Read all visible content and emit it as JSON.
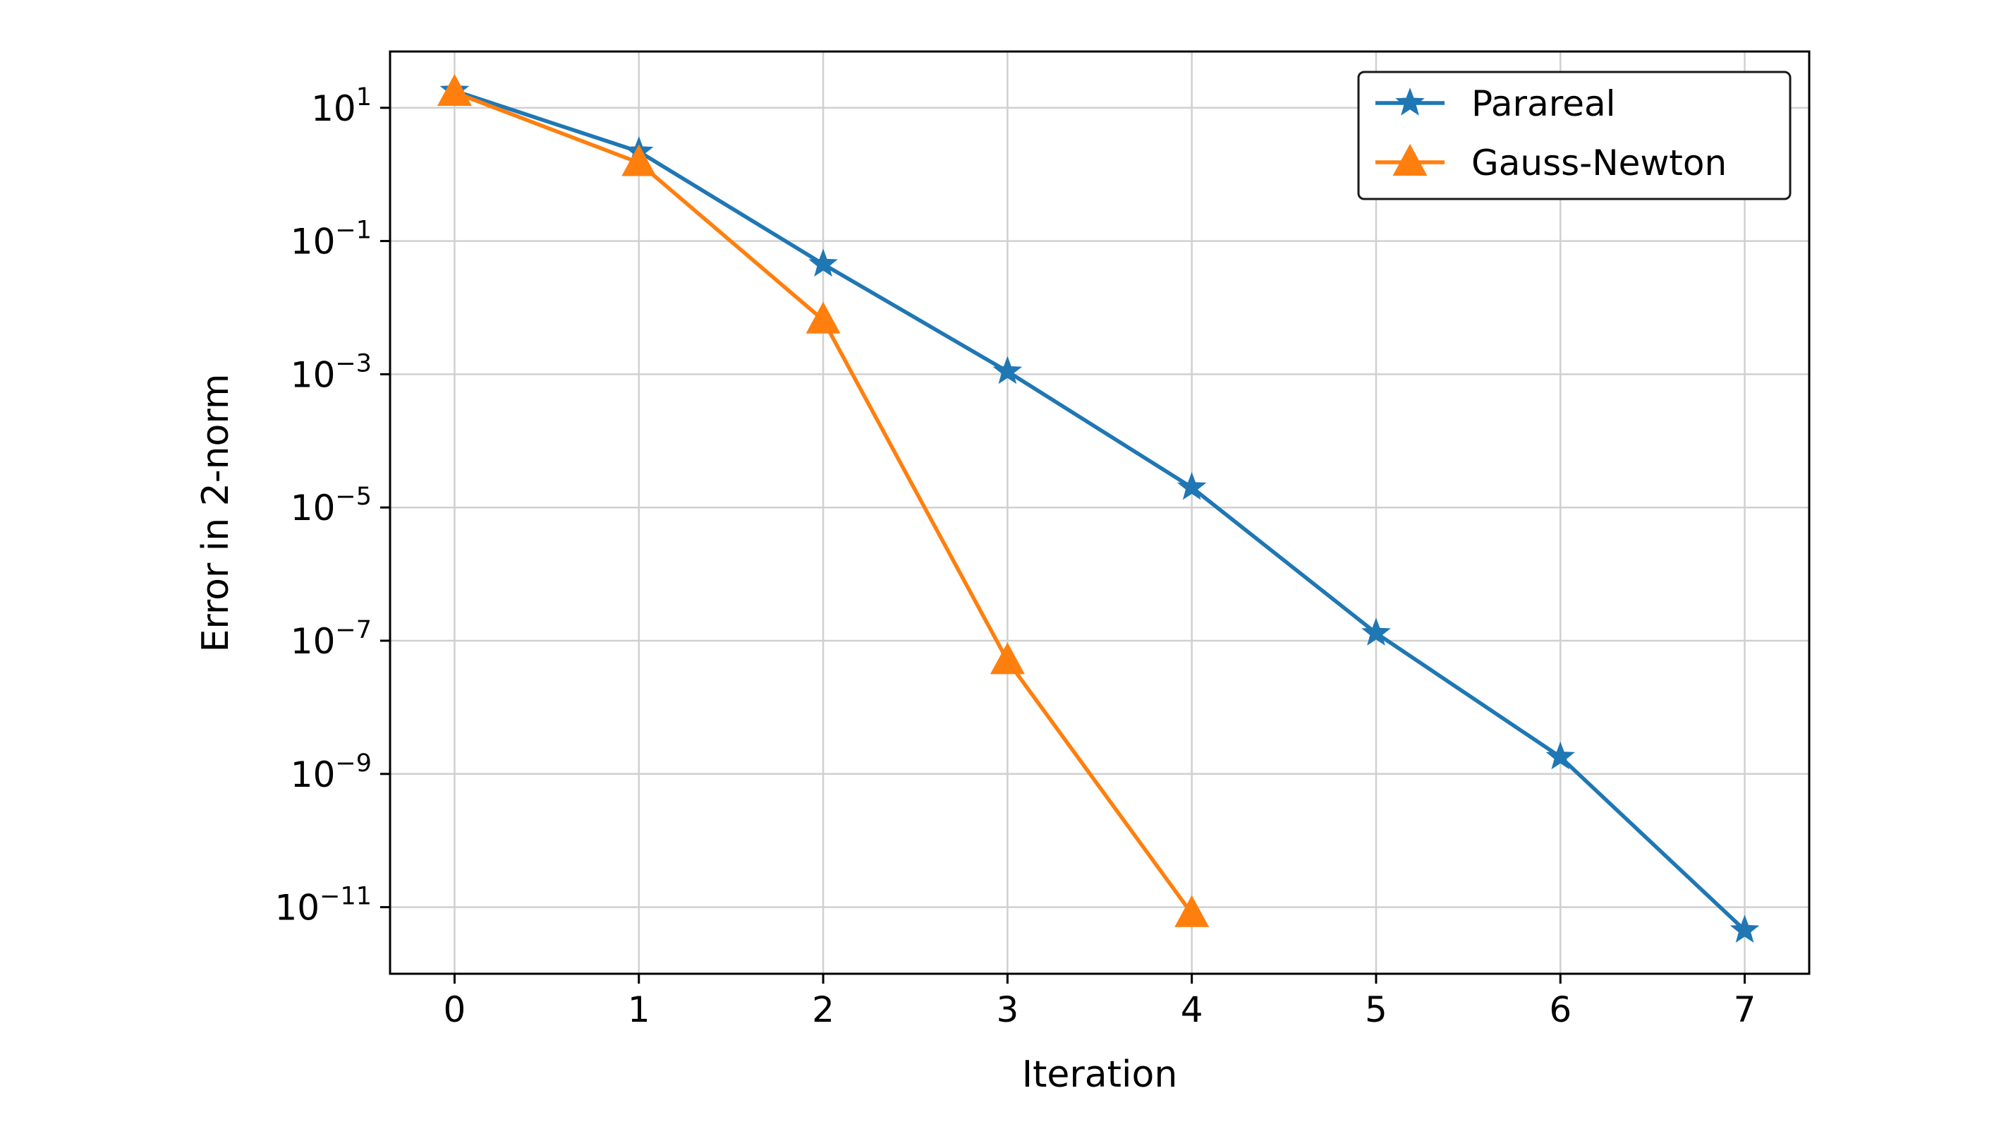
{
  "chart_data": {
    "type": "line",
    "title": "",
    "xlabel": "Iteration",
    "ylabel": "Error in 2-norm",
    "xlim": [
      -0.35,
      7.35
    ],
    "ylim": [
      1e-12,
      70
    ],
    "yscale": "log",
    "grid": true,
    "legend_position": "top-right",
    "x_ticks": [
      "0",
      "1",
      "2",
      "3",
      "4",
      "5",
      "6",
      "7"
    ],
    "y_ticks": [
      {
        "base": "10",
        "exp": "1",
        "value": 10
      },
      {
        "base": "10",
        "exp": "−1",
        "value": 0.1
      },
      {
        "base": "10",
        "exp": "−3",
        "value": 0.001
      },
      {
        "base": "10",
        "exp": "−5",
        "value": 1e-05
      },
      {
        "base": "10",
        "exp": "−7",
        "value": 1e-07
      },
      {
        "base": "10",
        "exp": "−9",
        "value": 1e-09
      },
      {
        "base": "10",
        "exp": "−11",
        "value": 1e-11
      }
    ],
    "series": [
      {
        "name": "Parareal",
        "color": "#1f77b4",
        "marker": "star",
        "x": [
          0,
          1,
          2,
          3,
          4,
          5,
          6,
          7
        ],
        "y": [
          18,
          2.2,
          0.045,
          0.0011,
          2e-05,
          1.3e-07,
          1.8e-09,
          4.5e-12
        ]
      },
      {
        "name": "Gauss-Newton",
        "color": "#ff7f0e",
        "marker": "triangle",
        "x": [
          0,
          1,
          2,
          3,
          4
        ],
        "y": [
          17,
          1.5,
          0.0065,
          5e-08,
          8e-12
        ]
      }
    ]
  }
}
